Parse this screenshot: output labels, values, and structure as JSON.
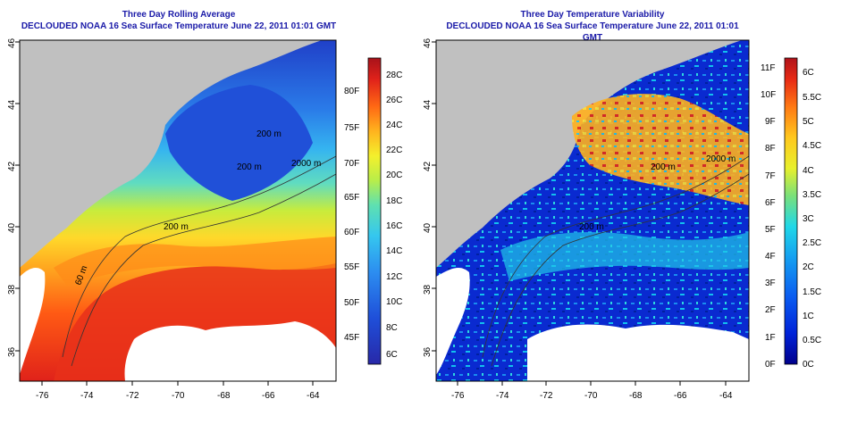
{
  "left_panel": {
    "title": "Three Day Rolling Average",
    "subtitle": "DECLOUDED NOAA 16 Sea Surface Temperature June 22, 2011 01:01 GMT",
    "lon_ticks": [
      "-76",
      "-74",
      "-72",
      "-70",
      "-68",
      "-66",
      "-64"
    ],
    "lat_ticks": [
      "36",
      "38",
      "40",
      "42",
      "44",
      "46"
    ],
    "contour_labels": [
      "200 m",
      "2000 m",
      "200 m",
      "200 m",
      "60 m"
    ],
    "colorbar_c": [
      "28C",
      "26C",
      "24C",
      "22C",
      "20C",
      "18C",
      "16C",
      "14C",
      "12C",
      "10C",
      "8C",
      "6C"
    ],
    "colorbar_f": [
      "80F",
      "75F",
      "70F",
      "65F",
      "60F",
      "55F",
      "50F",
      "45F"
    ],
    "colors": [
      "#2828a8",
      "#1f4fd9",
      "#2c8df0",
      "#35c7ef",
      "#5fe0b0",
      "#b8ee4a",
      "#f4f02c",
      "#ffb41e",
      "#ff6a14",
      "#e0221a",
      "#a8121a"
    ]
  },
  "right_panel": {
    "title": "Three Day Temperature Variability",
    "subtitle": "DECLOUDED NOAA 16 Sea Surface Temperature June 22, 2011 01:01 GMT",
    "lon_ticks": [
      "-76",
      "-74",
      "-72",
      "-70",
      "-68",
      "-66",
      "-64"
    ],
    "lat_ticks": [
      "36",
      "38",
      "40",
      "42",
      "44",
      "46"
    ],
    "contour_labels": [
      "200 m",
      "2000 m",
      "200 m"
    ],
    "colorbar_f": [
      "11F",
      "10F",
      "9F",
      "8F",
      "7F",
      "6F",
      "5F",
      "4F",
      "3F",
      "2F",
      "1F",
      "0F"
    ],
    "colorbar_c": [
      "6C",
      "5.5C",
      "5C",
      "4.5C",
      "4C",
      "3.5C",
      "3C",
      "2.5C",
      "2C",
      "1.5C",
      "1C",
      "0.5C",
      "0C"
    ],
    "colors": [
      "#00008b",
      "#0022d8",
      "#0a5cf0",
      "#15a0f0",
      "#20d8e8",
      "#7ae07a",
      "#e8f02c",
      "#ffc81e",
      "#ff7a14",
      "#e82a14",
      "#b0121a"
    ]
  },
  "land_color": "#c0c0c0"
}
